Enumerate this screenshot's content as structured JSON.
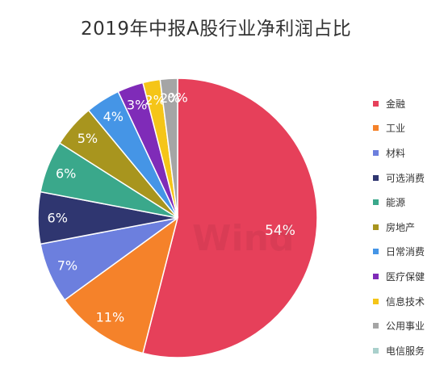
{
  "watermark": "Wind",
  "chart_data": {
    "type": "pie",
    "title": "2019年中报A股行业净利润占比",
    "legend_position": "right",
    "slices": [
      {
        "label": "金融",
        "value": 54,
        "value_label": "54%",
        "color": "#e6405a"
      },
      {
        "label": "工业",
        "value": 11,
        "value_label": "11%",
        "color": "#f5822a"
      },
      {
        "label": "材料",
        "value": 7,
        "value_label": "7%",
        "color": "#6c7fde"
      },
      {
        "label": "可选消费",
        "value": 6,
        "value_label": "6%",
        "color": "#2f3670"
      },
      {
        "label": "能源",
        "value": 6,
        "value_label": "6%",
        "color": "#3aa88b"
      },
      {
        "label": "房地产",
        "value": 5,
        "value_label": "5%",
        "color": "#a8951e"
      },
      {
        "label": "日常消费",
        "value": 4,
        "value_label": "4%",
        "color": "#4595e6"
      },
      {
        "label": "医疗保健",
        "value": 3,
        "value_label": "3%",
        "color": "#7f2bb8"
      },
      {
        "label": "信息技术",
        "value": 2,
        "value_label": "2%",
        "color": "#f5c518"
      },
      {
        "label": "公用事业",
        "value": 2,
        "value_label": "2%",
        "color": "#a5a5a5"
      },
      {
        "label": "电信服务",
        "value": 0,
        "value_label": "0%",
        "color": "#a9d0cc"
      }
    ]
  }
}
